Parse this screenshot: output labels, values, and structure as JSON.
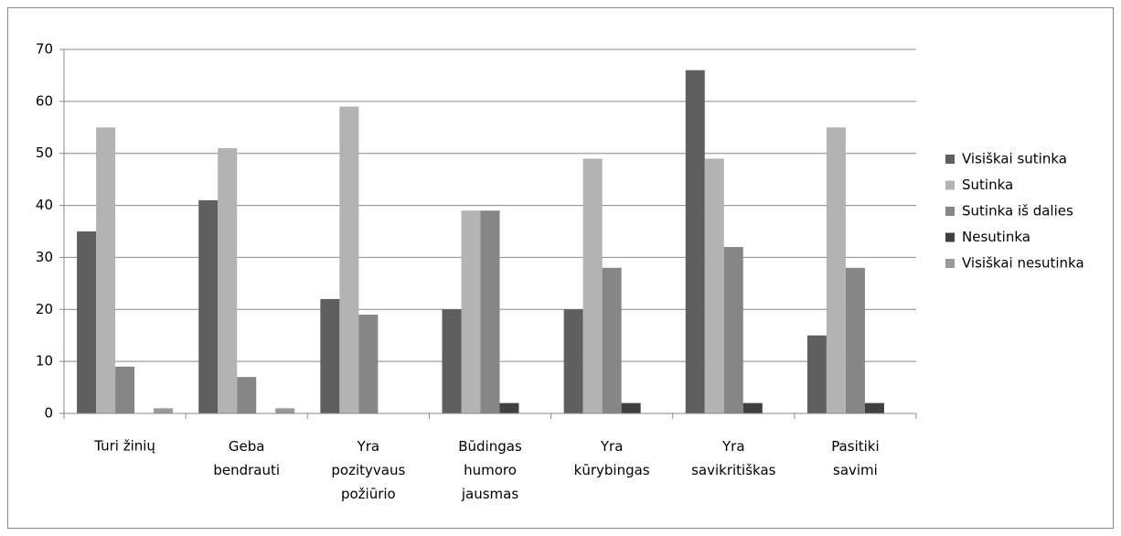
{
  "chart_data": {
    "type": "bar",
    "categories": [
      "Turi žinių",
      "Geba\nbendrauti",
      "Yra\npozityvaus\npožiūrio",
      "Būdingas\nhumoro\njausmas",
      "Yra\nkūrybingas",
      "Yra\nsavikritiškas",
      "Pasitiki\nsavimi"
    ],
    "series": [
      {
        "name": "Visiškai sutinka",
        "color": "#5f5f5f",
        "values": [
          35,
          41,
          22,
          20,
          20,
          66,
          15
        ]
      },
      {
        "name": "Sutinka",
        "color": "#b3b3b3",
        "values": [
          55,
          51,
          59,
          39,
          49,
          49,
          55
        ]
      },
      {
        "name": "Sutinka iš dalies",
        "color": "#868686",
        "values": [
          9,
          7,
          19,
          39,
          28,
          32,
          28
        ]
      },
      {
        "name": "Nesutinka",
        "color": "#404040",
        "values": [
          0,
          0,
          0,
          2,
          2,
          2,
          2
        ]
      },
      {
        "name": "Visiškai nesutinka",
        "color": "#9a9a9a",
        "values": [
          1,
          1,
          0,
          0,
          0,
          0,
          0
        ]
      }
    ],
    "ylim": [
      0,
      70
    ],
    "yticks": [
      0,
      10,
      20,
      30,
      40,
      50,
      60,
      70
    ],
    "grid": true,
    "legend": "right"
  }
}
